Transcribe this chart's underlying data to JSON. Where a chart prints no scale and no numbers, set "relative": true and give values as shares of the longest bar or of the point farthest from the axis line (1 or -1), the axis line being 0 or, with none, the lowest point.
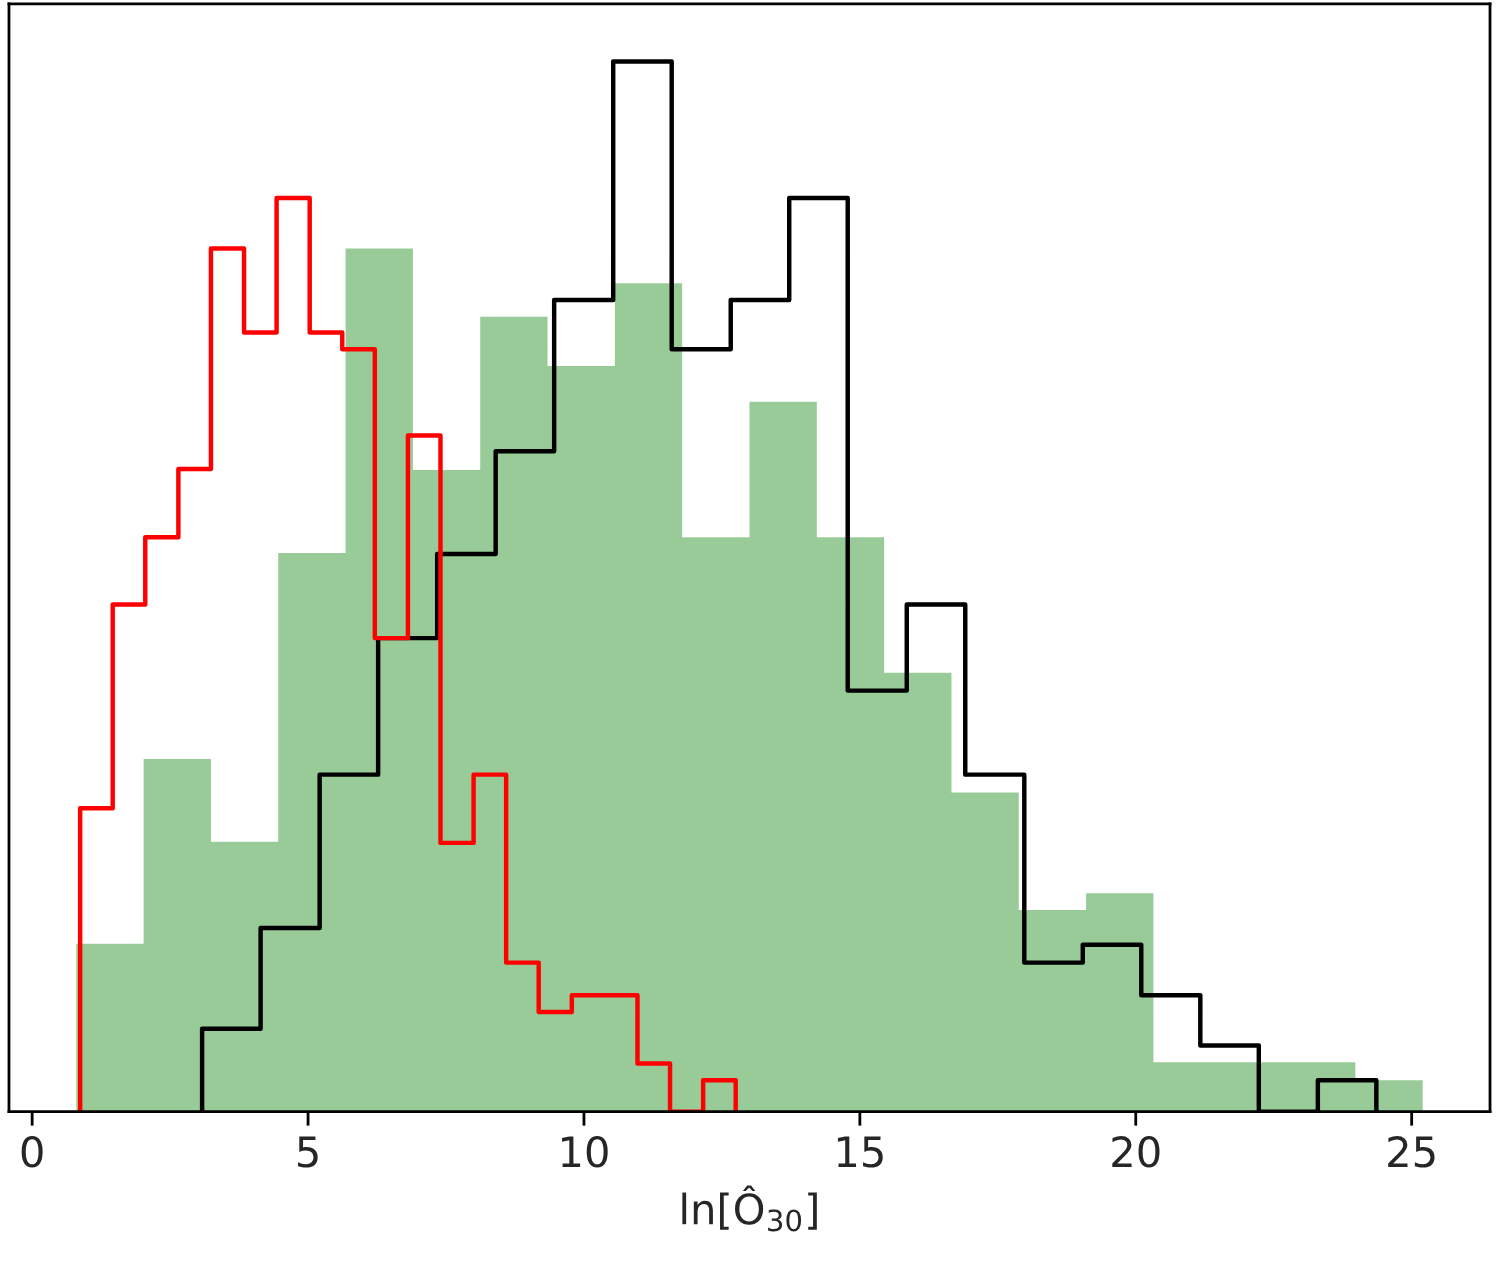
{
  "chart_data": {
    "type": "histogram",
    "xlabel": "ln[Ô$_{30}$]",
    "relative": true,
    "xlim": [
      -0.42,
      26.42
    ],
    "xticks": [
      0,
      5,
      10,
      15,
      20,
      25
    ],
    "grid": false,
    "legend": false,
    "color": "#99cb98",
    "bins": [
      0.8,
      2.02,
      3.24,
      4.46,
      5.68,
      6.9,
      8.12,
      9.34,
      10.56,
      11.78,
      13.0,
      14.22,
      15.44,
      16.66,
      17.88,
      19.1,
      20.32,
      21.54,
      22.76,
      23.98,
      25.2
    ],
    "values": [
      0.16,
      0.336,
      0.257,
      0.532,
      0.822,
      0.611,
      0.757,
      0.71,
      0.789,
      0.547,
      0.676,
      0.547,
      0.418,
      0.304,
      0.192,
      0.208,
      0.047,
      0.047,
      0.047,
      0.03
    ],
    "series": [
      {
        "type": "step",
        "color": "#000000",
        "x": [
          3.08,
          3.08,
          4.14,
          5.21,
          6.27,
          7.34,
          8.4,
          9.46,
          10.53,
          11.59,
          12.66,
          13.72,
          14.78,
          15.85,
          16.91,
          17.98,
          19.04,
          20.1,
          21.17,
          22.23,
          23.3,
          24.36,
          24.36
        ],
        "values": [
          0,
          0.079,
          0.175,
          0.321,
          0.451,
          0.531,
          0.629,
          0.773,
          1,
          0.726,
          0.773,
          0.87,
          0.401,
          0.483,
          0.321,
          0.142,
          0.159,
          0.111,
          0.063,
          0,
          0.03,
          0.03,
          0
        ]
      },
      {
        "type": "step",
        "color": "#ff0000",
        "x": [
          0.87,
          0.87,
          1.46,
          2.05,
          2.65,
          3.24,
          3.84,
          4.43,
          5.03,
          5.62,
          6.21,
          6.81,
          7.4,
          8.0,
          8.59,
          9.18,
          9.78,
          10.37,
          10.97,
          11.56,
          12.16,
          12.75,
          12.75
        ],
        "values": [
          0,
          0.289,
          0.483,
          0.547,
          0.612,
          0.822,
          0.742,
          0.87,
          0.742,
          0.726,
          0.451,
          0.644,
          0.256,
          0.321,
          0.142,
          0.095,
          0.111,
          0.111,
          0.046,
          0,
          0.03,
          0.03,
          0
        ]
      }
    ]
  }
}
